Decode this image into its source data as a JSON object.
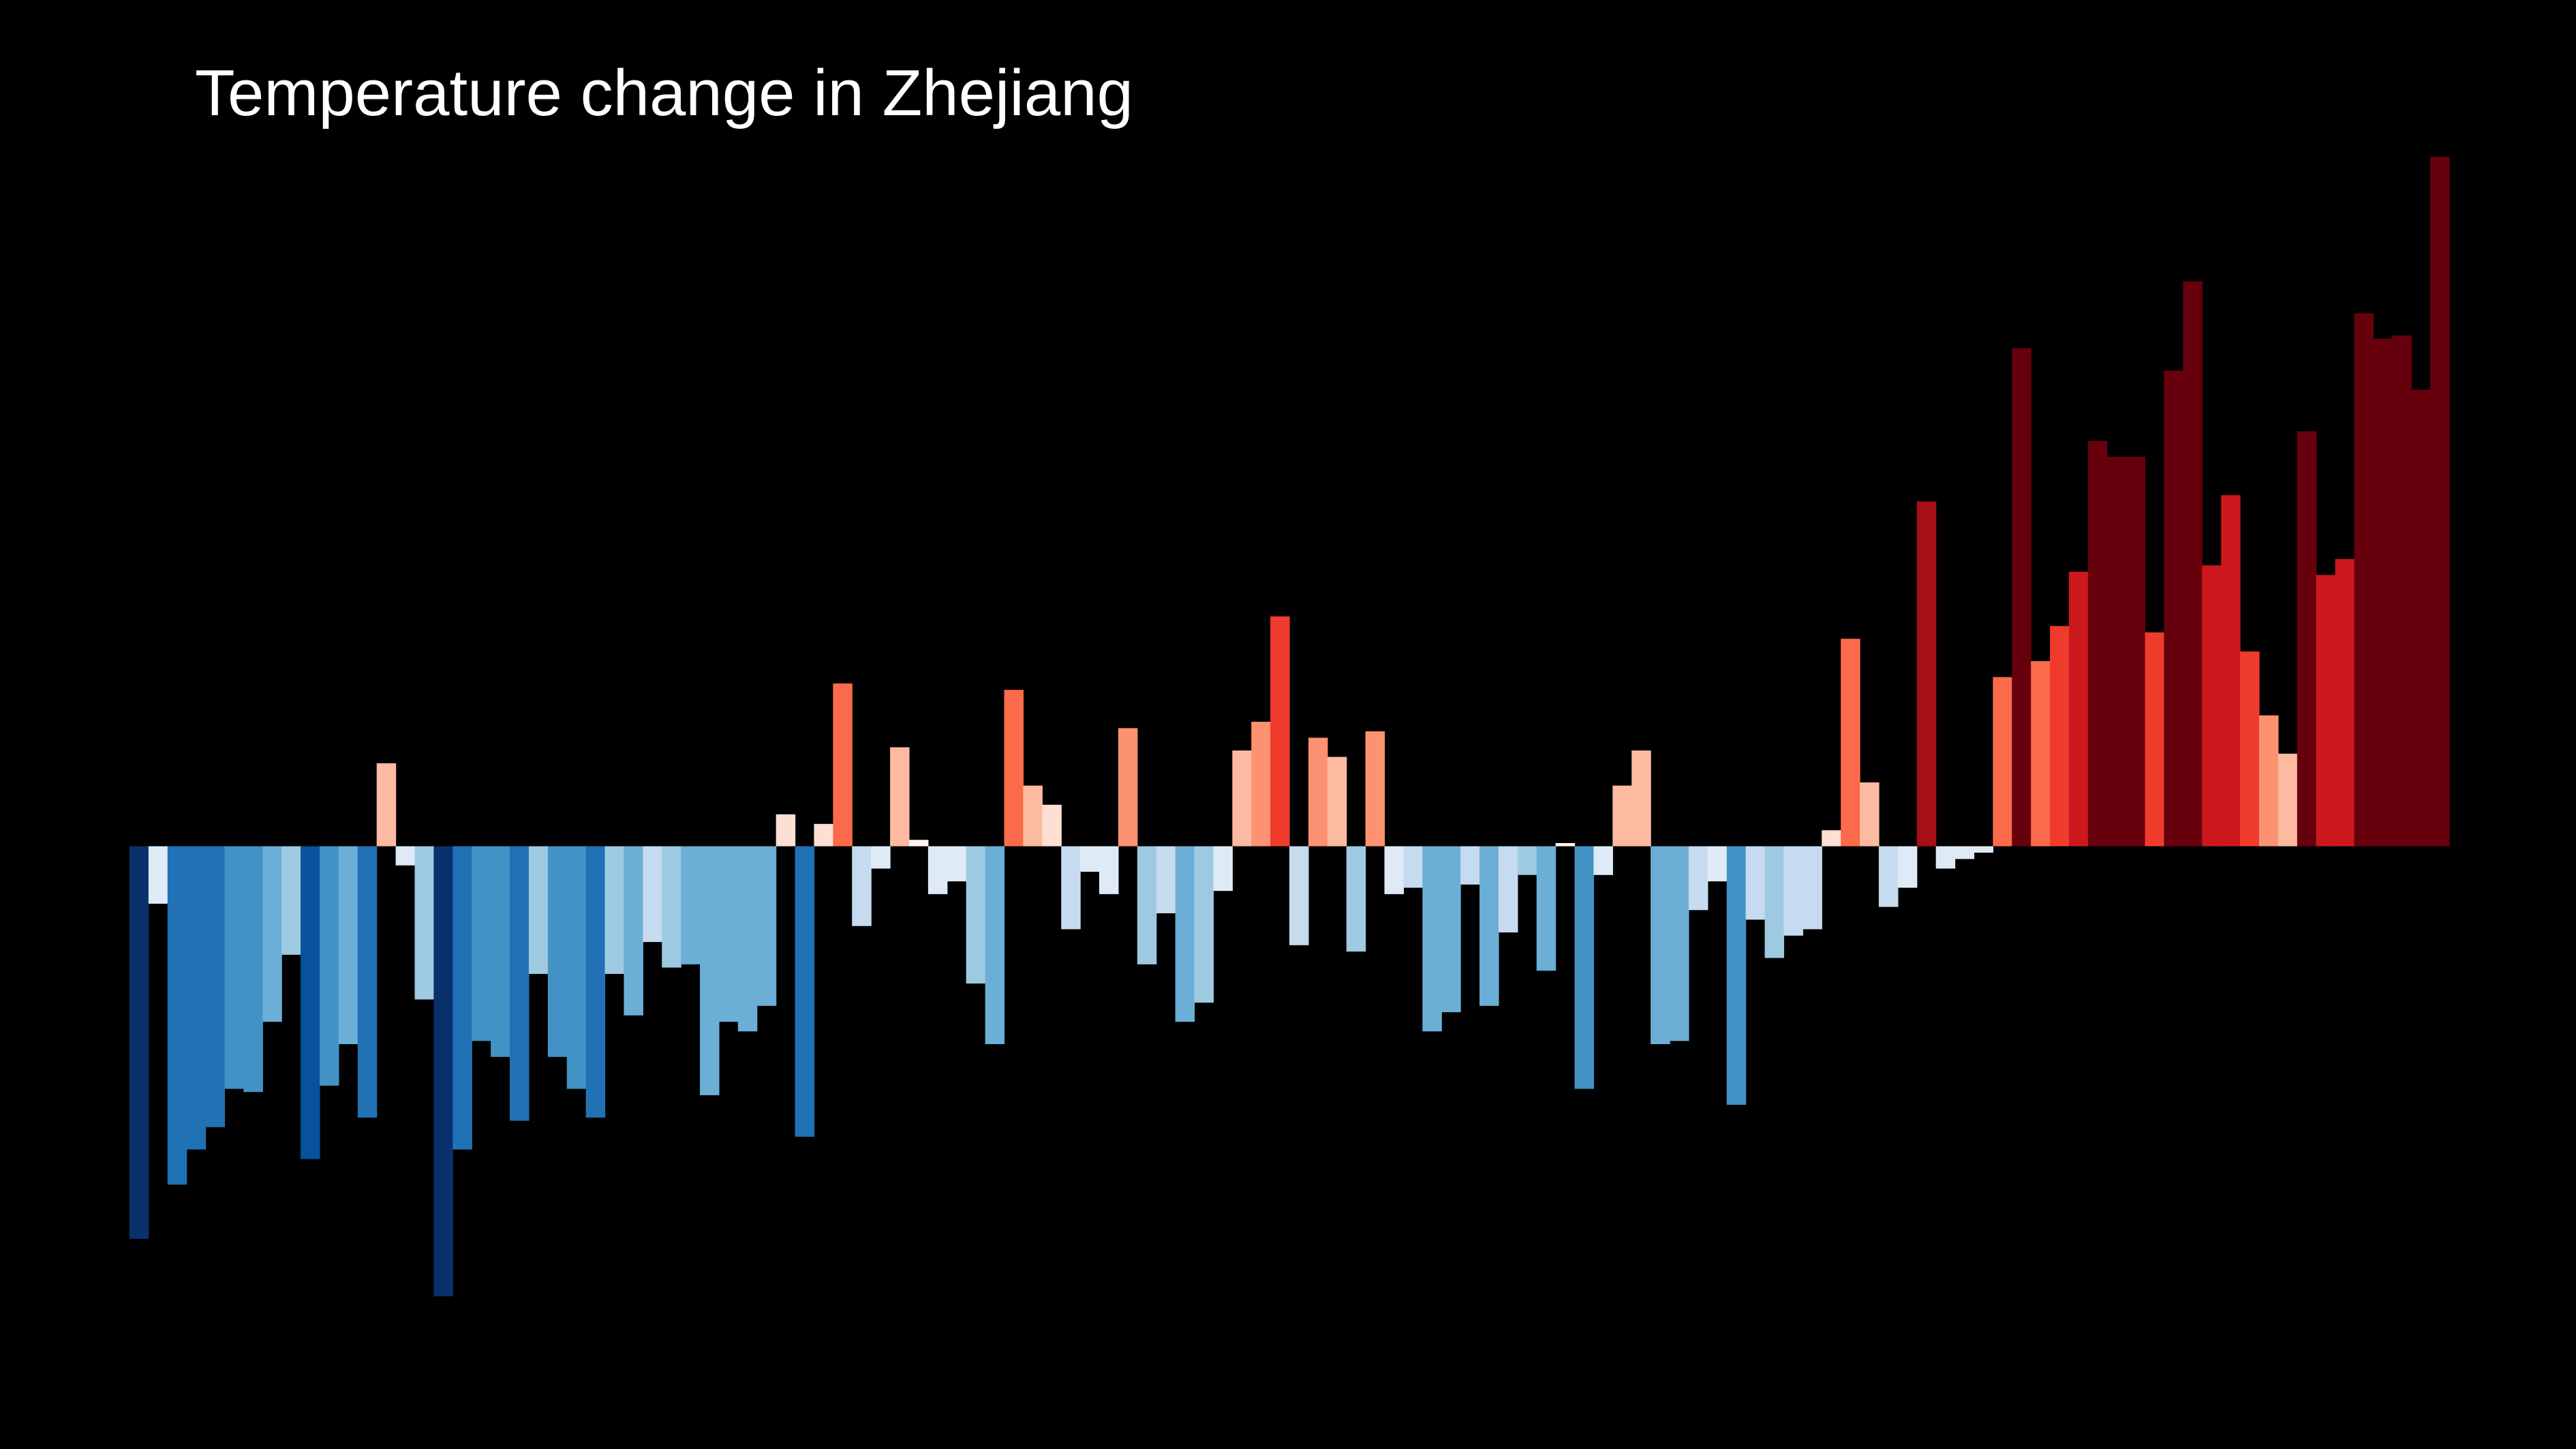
{
  "chart_data": {
    "type": "bar",
    "title": "Temperature change in Zhejiang",
    "xlabel": "",
    "ylabel": "",
    "ylim": [
      -1.41,
      2.16
    ],
    "grid": false,
    "legend": "none",
    "background_color": "#000000",
    "title_color": "#ffffff",
    "color_scale": "diverging blue-white-red (cool years blue, warm years red)",
    "values": [
      -1.23,
      -0.18,
      -1.06,
      -0.95,
      -0.88,
      -0.76,
      -0.77,
      -0.55,
      -0.34,
      -0.98,
      -0.75,
      -0.62,
      -0.85,
      0.26,
      -0.06,
      -0.48,
      -1.41,
      -0.95,
      -0.61,
      -0.66,
      -0.86,
      -0.4,
      -0.66,
      -0.76,
      -0.85,
      -0.4,
      -0.53,
      -0.3,
      -0.38,
      -0.37,
      -0.78,
      -0.55,
      -0.58,
      -0.5,
      0.1,
      -0.91,
      0.07,
      0.51,
      -0.25,
      -0.07,
      0.31,
      0.02,
      -0.15,
      -0.11,
      -0.43,
      -0.62,
      0.49,
      0.19,
      0.13,
      -0.26,
      -0.08,
      -0.15,
      0.37,
      -0.37,
      -0.21,
      -0.55,
      -0.49,
      -0.14,
      0.3,
      0.39,
      0.72,
      -0.31,
      0.34,
      0.28,
      -0.33,
      0.36,
      -0.15,
      -0.13,
      -0.58,
      -0.52,
      -0.12,
      -0.5,
      -0.27,
      -0.09,
      -0.39,
      0.01,
      -0.76,
      -0.09,
      0.19,
      0.3,
      -0.62,
      -0.61,
      -0.2,
      -0.11,
      -0.81,
      -0.23,
      -0.35,
      -0.28,
      -0.26,
      0.05,
      0.65,
      0.2,
      -0.19,
      -0.13,
      1.08,
      -0.07,
      -0.04,
      -0.02,
      0.53,
      1.56,
      0.58,
      0.69,
      0.86,
      1.27,
      1.22,
      1.22,
      0.67,
      1.49,
      1.77,
      0.88,
      1.1,
      0.61,
      0.41,
      0.29,
      1.3,
      0.85,
      0.9,
      1.67,
      1.59,
      1.6,
      1.43,
      2.16
    ],
    "colors": [
      "#08306b",
      "#deebf7",
      "#2171b5",
      "#2171b5",
      "#2171b5",
      "#4292c6",
      "#4292c6",
      "#6baed6",
      "#9ecae1",
      "#08519c",
      "#4292c6",
      "#6baed6",
      "#2171b5",
      "#fcbba1",
      "#deebf7",
      "#9ecae1",
      "#08306b",
      "#2171b5",
      "#4292c6",
      "#4292c6",
      "#2171b5",
      "#9ecae1",
      "#4292c6",
      "#4292c6",
      "#2171b5",
      "#9ecae1",
      "#6baed6",
      "#c6dbef",
      "#9ecae1",
      "#6baed6",
      "#6baed6",
      "#6baed6",
      "#6baed6",
      "#6baed6",
      "#fee0d2",
      "#2171b5",
      "#fee0d2",
      "#fb6a4a",
      "#c6dbef",
      "#deebf7",
      "#fcbba1",
      "#fff5f0",
      "#deebf7",
      "#deebf7",
      "#9ecae1",
      "#6baed6",
      "#fb6a4a",
      "#fcbba1",
      "#fee0d2",
      "#c6dbef",
      "#deebf7",
      "#deebf7",
      "#fc9272",
      "#9ecae1",
      "#c6dbef",
      "#6baed6",
      "#9ecae1",
      "#deebf7",
      "#fcbba1",
      "#fc9272",
      "#ef3b2c",
      "#c6dbef",
      "#fc9272",
      "#fcbba1",
      "#9ecae1",
      "#fc9272",
      "#deebf7",
      "#c6dbef",
      "#6baed6",
      "#6baed6",
      "#c6dbef",
      "#6baed6",
      "#c6dbef",
      "#9ecae1",
      "#6baed6",
      "#fff5f0",
      "#4292c6",
      "#deebf7",
      "#fcbba1",
      "#fcbba1",
      "#6baed6",
      "#6baed6",
      "#c6dbef",
      "#deebf7",
      "#4292c6",
      "#c6dbef",
      "#9ecae1",
      "#c6dbef",
      "#c6dbef",
      "#fee0d2",
      "#fb6a4a",
      "#fcbba1",
      "#c6dbef",
      "#deebf7",
      "#a50f15",
      "#deebf7",
      "#deebf7",
      "#deebf7",
      "#fb6a4a",
      "#67000d",
      "#fb6a4a",
      "#ef3b2c",
      "#cb181d",
      "#67000d",
      "#67000d",
      "#67000d",
      "#ef3b2c",
      "#67000d",
      "#67000d",
      "#cb181d",
      "#cb181d",
      "#ef3b2c",
      "#fc9272",
      "#fcbba1",
      "#67000d",
      "#cb181d",
      "#cb181d",
      "#67000d",
      "#67000d",
      "#67000d",
      "#67000d",
      "#67000d"
    ]
  }
}
